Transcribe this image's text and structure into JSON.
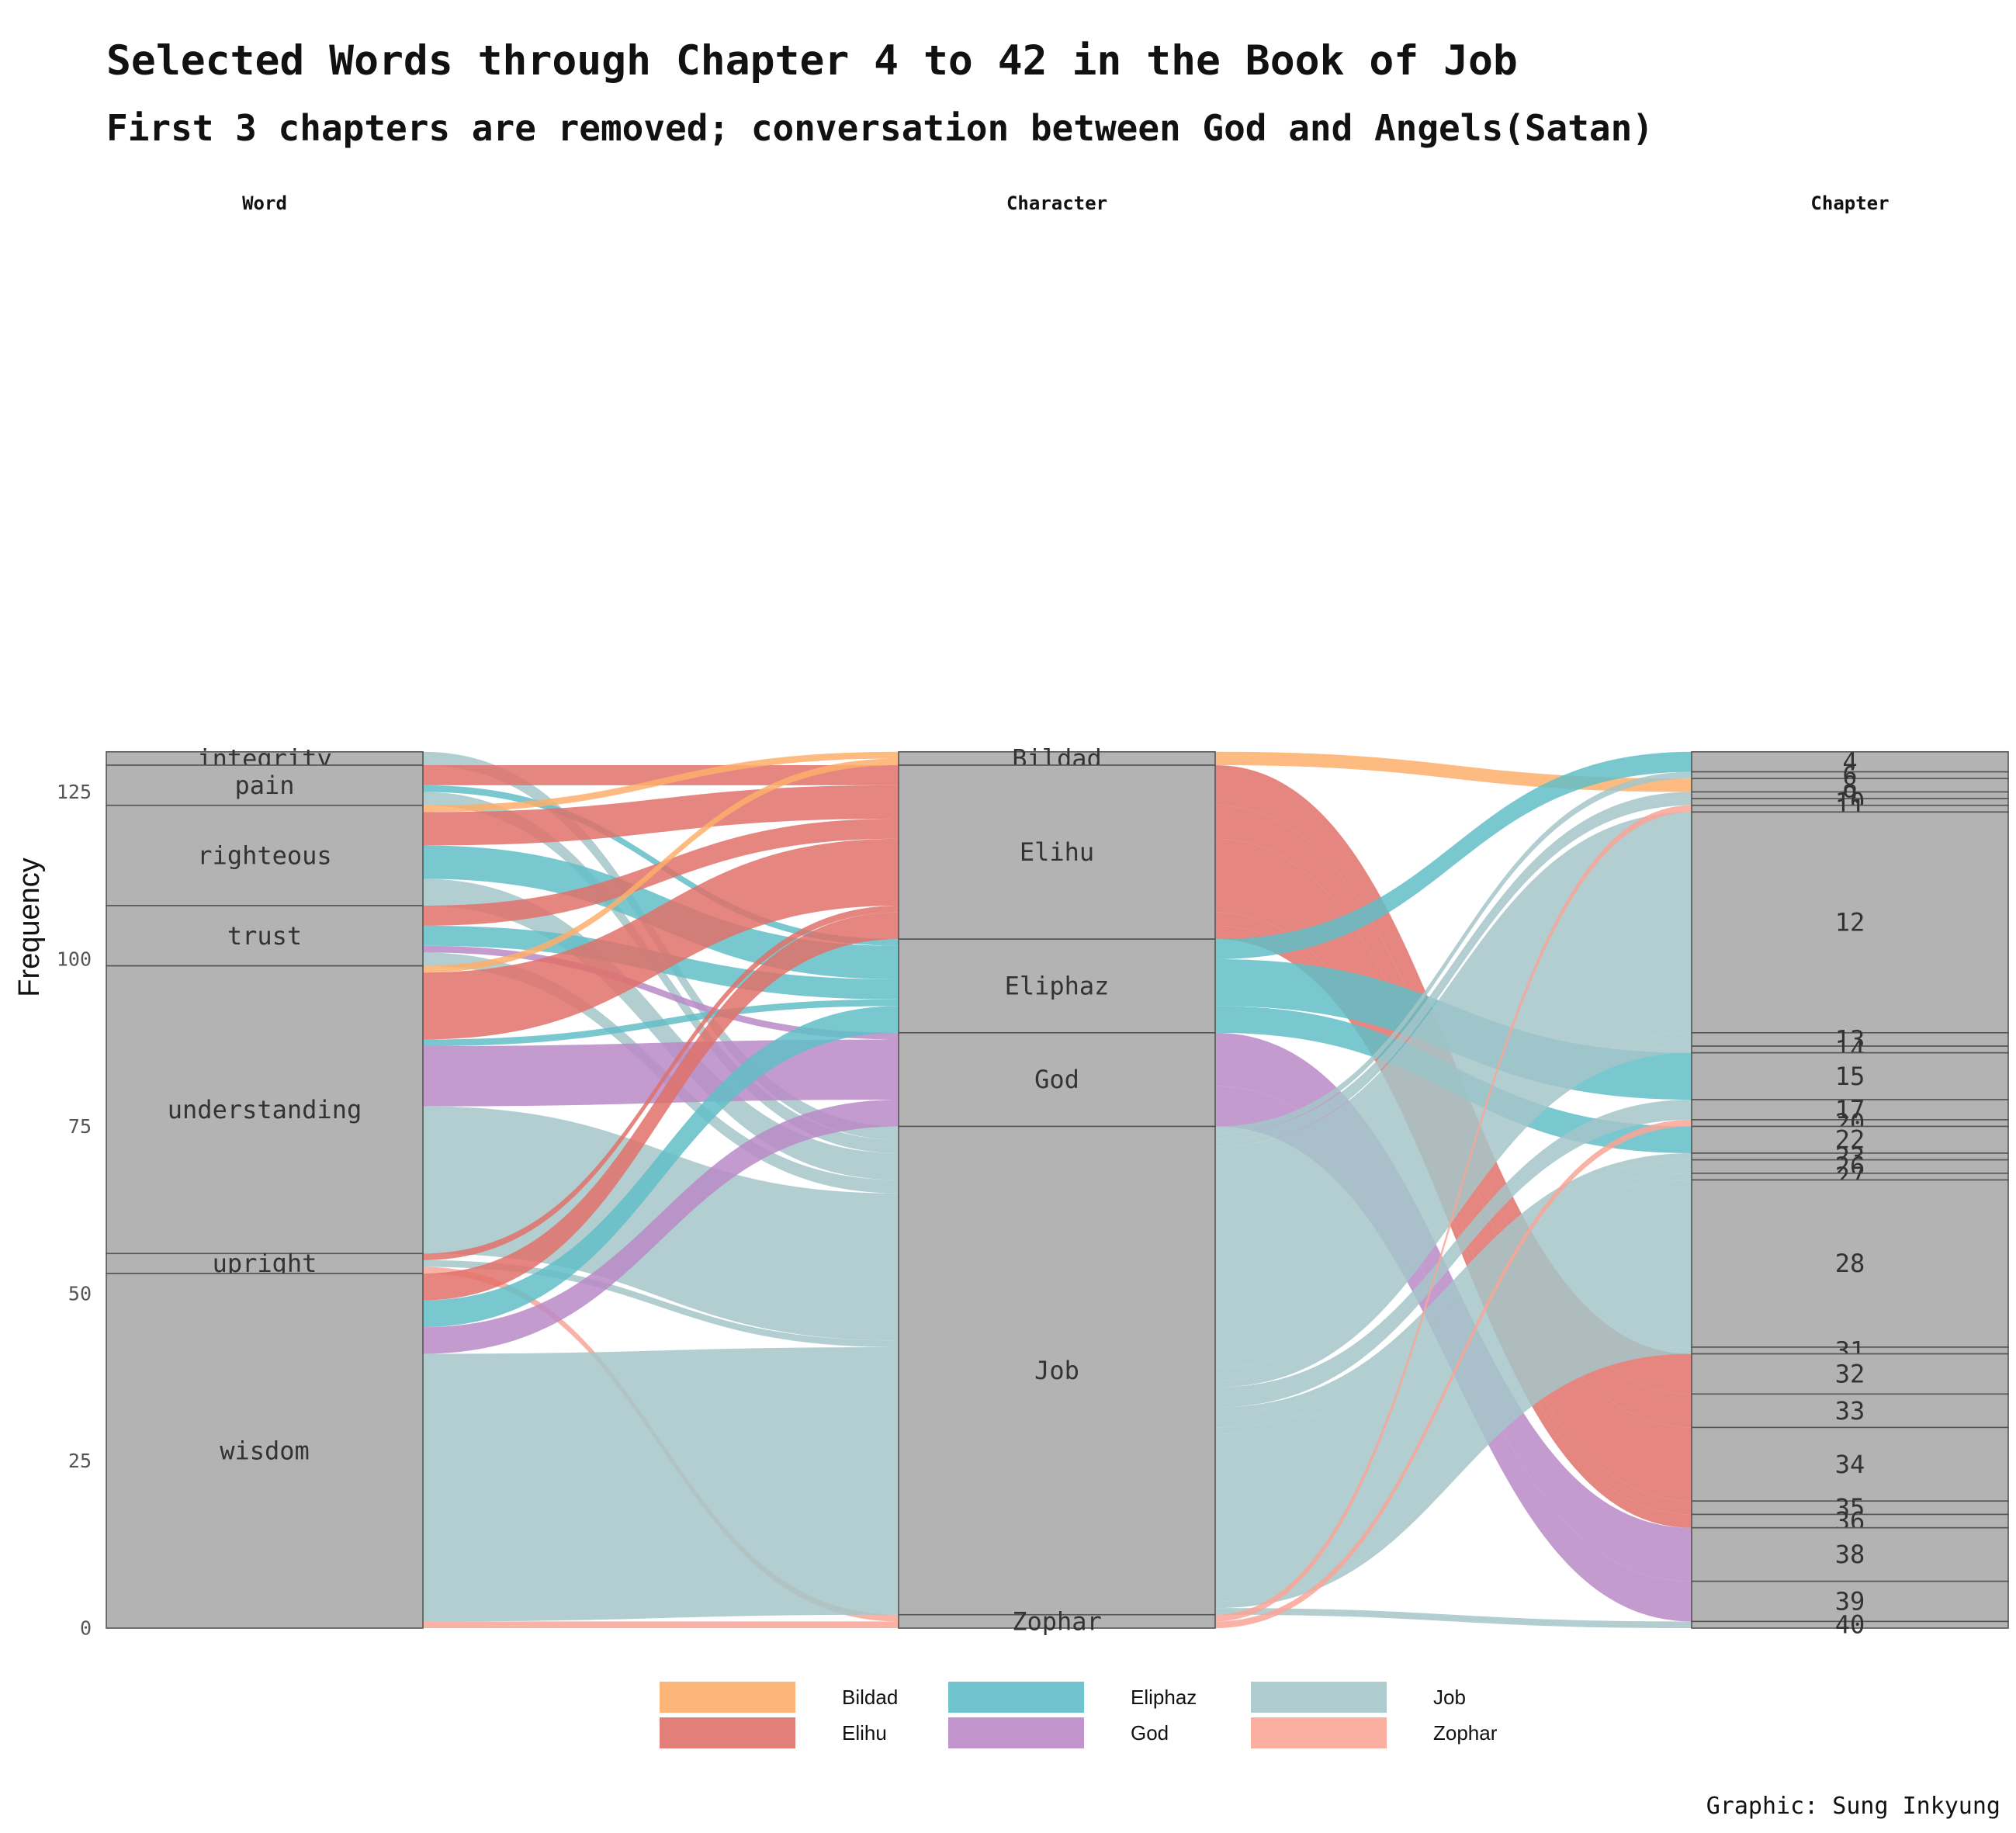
{
  "title": "Selected Words through Chapter 4 to 42 in the Book of Job",
  "subtitle": "First 3 chapters are removed; conversation between God and Angels(Satan)",
  "caption": "Graphic: Sung Inkyung",
  "chart_data": {
    "type": "alluvial",
    "ylabel": "Frequency",
    "ylim": [
      0,
      131
    ],
    "yticks": [
      0,
      25,
      50,
      75,
      100,
      125
    ],
    "axes": [
      {
        "name": "Word",
        "strata": [
          {
            "label": "integrity",
            "value": 2
          },
          {
            "label": "pain",
            "value": 6
          },
          {
            "label": "righteous",
            "value": 15
          },
          {
            "label": "trust",
            "value": 9
          },
          {
            "label": "understanding",
            "value": 43
          },
          {
            "label": "upright",
            "value": 3
          },
          {
            "label": "wisdom",
            "value": 53
          }
        ]
      },
      {
        "name": "Character",
        "strata": [
          {
            "label": "Bildad",
            "value": 2
          },
          {
            "label": "Elihu",
            "value": 26
          },
          {
            "label": "Eliphaz",
            "value": 14
          },
          {
            "label": "God",
            "value": 14
          },
          {
            "label": "Job",
            "value": 73
          },
          {
            "label": "Zophar",
            "value": 2
          }
        ]
      },
      {
        "name": "Chapter",
        "strata": [
          {
            "label": "4",
            "value": 3
          },
          {
            "label": "6",
            "value": 1
          },
          {
            "label": "8",
            "value": 2
          },
          {
            "label": "9",
            "value": 1
          },
          {
            "label": "10",
            "value": 1
          },
          {
            "label": "11",
            "value": 1
          },
          {
            "label": "12",
            "value": 33
          },
          {
            "label": "13",
            "value": 2
          },
          {
            "label": "14",
            "value": 1
          },
          {
            "label": "15",
            "value": 7
          },
          {
            "label": "17",
            "value": 3
          },
          {
            "label": "20",
            "value": 1
          },
          {
            "label": "22",
            "value": 4
          },
          {
            "label": "23",
            "value": 1
          },
          {
            "label": "26",
            "value": 2
          },
          {
            "label": "27",
            "value": 1
          },
          {
            "label": "28",
            "value": 25
          },
          {
            "label": "31",
            "value": 1
          },
          {
            "label": "32",
            "value": 6
          },
          {
            "label": "33",
            "value": 5
          },
          {
            "label": "34",
            "value": 11
          },
          {
            "label": "35",
            "value": 2
          },
          {
            "label": "36",
            "value": 2
          },
          {
            "label": "38",
            "value": 8
          },
          {
            "label": "39",
            "value": 6
          },
          {
            "label": "40",
            "value": 1
          }
        ]
      }
    ],
    "flows_word_character": [
      [
        "integrity",
        "Job",
        2
      ],
      [
        "pain",
        "Elihu",
        3
      ],
      [
        "pain",
        "Eliphaz",
        1
      ],
      [
        "pain",
        "Job",
        2
      ],
      [
        "righteous",
        "Bildad",
        1
      ],
      [
        "righteous",
        "Elihu",
        5
      ],
      [
        "righteous",
        "Eliphaz",
        5
      ],
      [
        "righteous",
        "Job",
        4
      ],
      [
        "trust",
        "Elihu",
        3
      ],
      [
        "trust",
        "Eliphaz",
        3
      ],
      [
        "trust",
        "God",
        1
      ],
      [
        "trust",
        "Job",
        2
      ],
      [
        "understanding",
        "Bildad",
        1
      ],
      [
        "understanding",
        "Elihu",
        10
      ],
      [
        "understanding",
        "Eliphaz",
        1
      ],
      [
        "understanding",
        "God",
        9
      ],
      [
        "understanding",
        "Job",
        22
      ],
      [
        "upright",
        "Elihu",
        1
      ],
      [
        "upright",
        "Job",
        1
      ],
      [
        "upright",
        "Zophar",
        1
      ],
      [
        "wisdom",
        "Elihu",
        4
      ],
      [
        "wisdom",
        "Eliphaz",
        4
      ],
      [
        "wisdom",
        "God",
        4
      ],
      [
        "wisdom",
        "Job",
        40
      ],
      [
        "wisdom",
        "Zophar",
        1
      ]
    ],
    "flows_character_chapter": [
      [
        "Bildad",
        "8",
        2
      ],
      [
        "Elihu",
        "32",
        6
      ],
      [
        "Elihu",
        "33",
        5
      ],
      [
        "Elihu",
        "34",
        11
      ],
      [
        "Elihu",
        "35",
        2
      ],
      [
        "Elihu",
        "36",
        2
      ],
      [
        "Eliphaz",
        "4",
        3
      ],
      [
        "Eliphaz",
        "15",
        7
      ],
      [
        "Eliphaz",
        "22",
        4
      ],
      [
        "God",
        "38",
        8
      ],
      [
        "God",
        "39",
        6
      ],
      [
        "Job",
        "6",
        1
      ],
      [
        "Job",
        "9",
        1
      ],
      [
        "Job",
        "10",
        1
      ],
      [
        "Job",
        "12",
        33
      ],
      [
        "Job",
        "13",
        2
      ],
      [
        "Job",
        "14",
        1
      ],
      [
        "Job",
        "17",
        3
      ],
      [
        "Job",
        "23",
        1
      ],
      [
        "Job",
        "26",
        2
      ],
      [
        "Job",
        "27",
        1
      ],
      [
        "Job",
        "28",
        25
      ],
      [
        "Job",
        "31",
        1
      ],
      [
        "Job",
        "40",
        1
      ],
      [
        "Zophar",
        "11",
        1
      ],
      [
        "Zophar",
        "20",
        1
      ]
    ],
    "legend": [
      {
        "label": "Bildad",
        "color": "#FDAE6B"
      },
      {
        "label": "Eliphaz",
        "color": "#61BEC8"
      },
      {
        "label": "Job",
        "color": "#A5C6C9"
      },
      {
        "label": "Elihu",
        "color": "#E0716A"
      },
      {
        "label": "God",
        "color": "#BA8AC7"
      },
      {
        "label": "Zophar",
        "color": "#F9A596"
      }
    ]
  }
}
